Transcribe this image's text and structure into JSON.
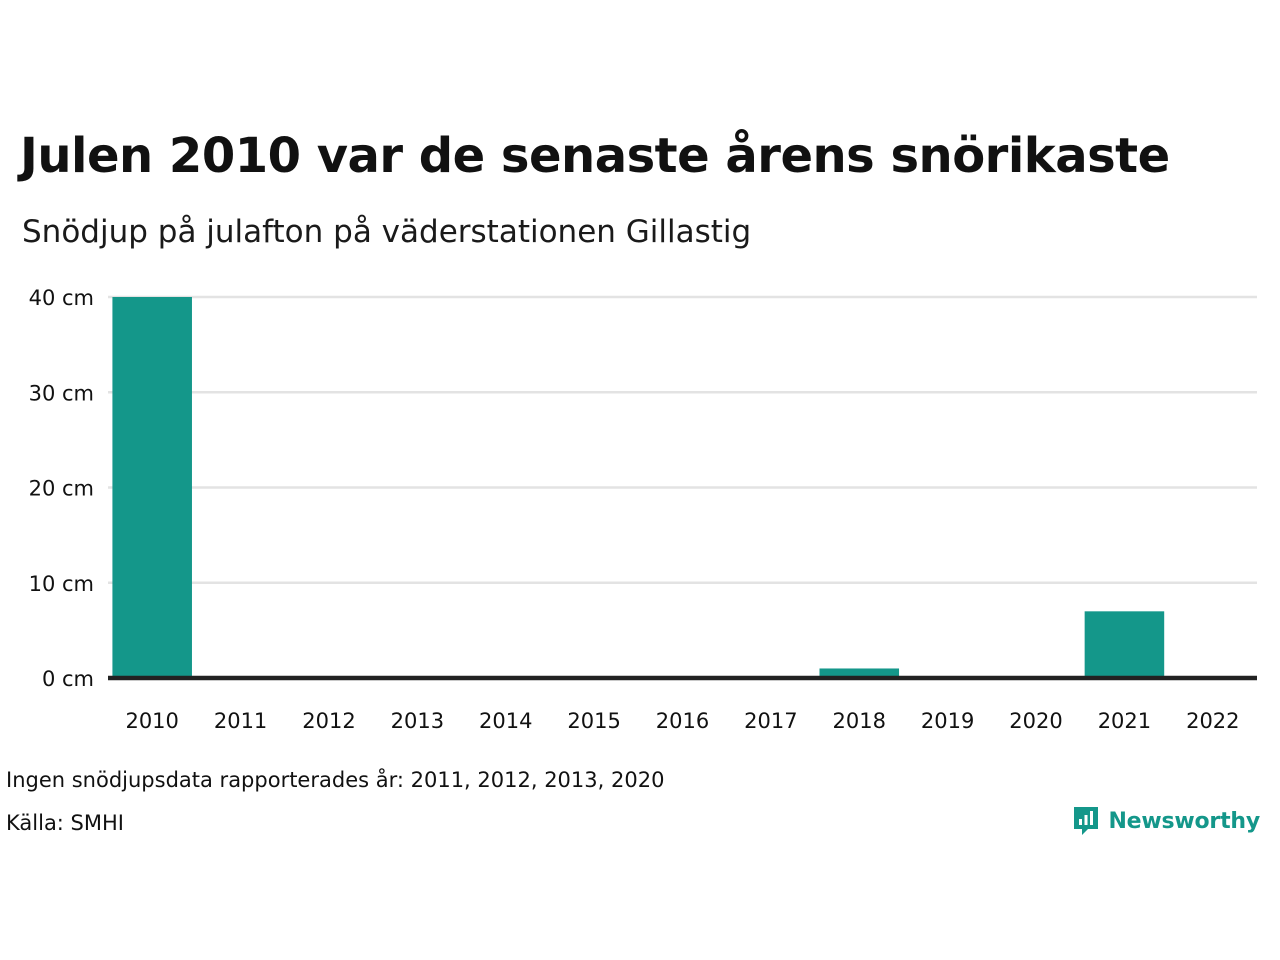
{
  "title": "Julen 2010 var de senaste årens snörikaste",
  "subtitle": "Snödjup på julafton på väderstationen Gillastig",
  "notes": {
    "missing": "Ingen snödjupsdata rapporterades år: 2011, 2012, 2013, 2020",
    "source": "Källa: SMHI"
  },
  "brand": {
    "name": "Newsworthy",
    "icon": "newsworthy-logo-icon"
  },
  "colors": {
    "bar": "#14978a",
    "grid": "#e3e3e3",
    "axis": "#222222",
    "brand": "#14978a"
  },
  "chart_data": {
    "type": "bar",
    "categories": [
      "2010",
      "2011",
      "2012",
      "2013",
      "2014",
      "2015",
      "2016",
      "2017",
      "2018",
      "2019",
      "2020",
      "2021",
      "2022"
    ],
    "values": [
      40,
      null,
      null,
      null,
      0,
      0,
      0,
      0,
      1,
      0,
      null,
      7,
      0
    ],
    "ylim": [
      0,
      40
    ],
    "yticks": [
      0,
      10,
      20,
      30,
      40
    ],
    "ytick_labels": [
      "0 cm",
      "10 cm",
      "20 cm",
      "30 cm",
      "40 cm"
    ],
    "grid": true,
    "legend": "none"
  }
}
